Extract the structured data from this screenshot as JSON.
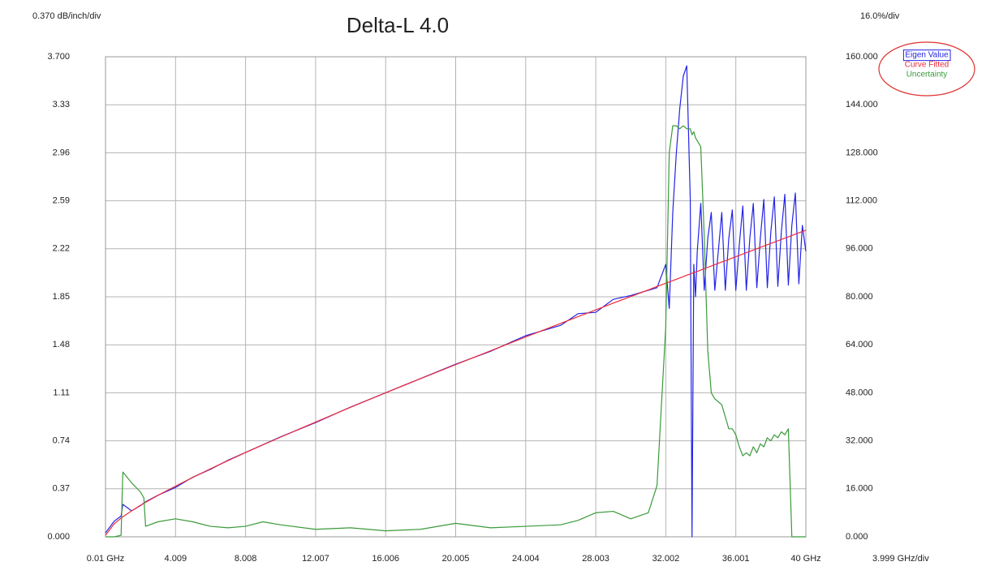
{
  "chart_data": {
    "type": "line",
    "title": "Delta-L 4.0",
    "y_axis_label": "0.370 dB/inch/div",
    "y2_axis_label": "16.0%/div",
    "x_axis_label": "3.999 GHz/div",
    "x": [
      0.01,
      0.5,
      0.9,
      1,
      1.5,
      2,
      2.2,
      2.3,
      3,
      4,
      5,
      6,
      7,
      8,
      9,
      10,
      12,
      14,
      16,
      18,
      20,
      22,
      24,
      26,
      27,
      28,
      29,
      30,
      31,
      31.5,
      32,
      32.2,
      32.4,
      32.6,
      32.8,
      33,
      33.2,
      33.4,
      33.5,
      33.6,
      33.7,
      33.8,
      34,
      34.2,
      34.4,
      34.6,
      34.8,
      35,
      35.2,
      35.4,
      35.6,
      35.8,
      36,
      36.2,
      36.4,
      36.6,
      36.8,
      37,
      37.2,
      37.4,
      37.6,
      37.8,
      38,
      38.2,
      38.4,
      38.6,
      38.8,
      39,
      39.2,
      39.4,
      39.6,
      39.8,
      40
    ],
    "series": [
      {
        "name": "Eigen Value",
        "color": "#2323e6",
        "values": [
          0.03,
          0.12,
          0.16,
          0.25,
          0.2,
          0.24,
          0.26,
          0.27,
          0.32,
          0.38,
          0.46,
          0.52,
          0.59,
          0.65,
          0.71,
          0.77,
          0.88,
          1.0,
          1.11,
          1.22,
          1.33,
          1.43,
          1.55,
          1.63,
          1.72,
          1.73,
          1.83,
          1.86,
          1.9,
          1.92,
          2.1,
          1.76,
          2.5,
          2.95,
          3.3,
          3.55,
          3.63,
          2.6,
          0.0,
          2.1,
          1.85,
          2.2,
          2.57,
          1.9,
          2.3,
          2.5,
          1.9,
          2.2,
          2.5,
          1.9,
          2.3,
          2.52,
          1.9,
          2.25,
          2.55,
          1.9,
          2.3,
          2.57,
          1.92,
          2.3,
          2.6,
          1.92,
          2.35,
          2.62,
          1.93,
          2.35,
          2.64,
          1.94,
          2.4,
          2.65,
          1.95,
          2.4,
          2.2
        ]
      },
      {
        "name": "Curve Fitted",
        "color": "#ee2b3b",
        "values": [
          0.012,
          0.1,
          0.144,
          0.154,
          0.2,
          0.242,
          0.258,
          0.266,
          0.319,
          0.39,
          0.458,
          0.524,
          0.587,
          0.649,
          0.709,
          0.768,
          0.884,
          0.998,
          1.11,
          1.219,
          1.327,
          1.434,
          1.54,
          1.645,
          1.697,
          1.749,
          1.801,
          1.852,
          1.903,
          1.929,
          1.954,
          1.964,
          1.975,
          1.985,
          1.995,
          2.005,
          2.016,
          2.026,
          2.031,
          2.036,
          2.041,
          2.046,
          2.056,
          2.066,
          2.077,
          2.087,
          2.097,
          2.108,
          2.118,
          2.128,
          2.138,
          2.149,
          2.159,
          2.169,
          2.179,
          2.19,
          2.2,
          2.21,
          2.22,
          2.231,
          2.241,
          2.251,
          2.261,
          2.271,
          2.282,
          2.292,
          2.302,
          2.312,
          2.322,
          2.333,
          2.343,
          2.353,
          2.363
        ]
      },
      {
        "name": "Uncertainty",
        "color": "#3a9a3a",
        "axis": "y2",
        "values": [
          0,
          0,
          0.5,
          21.6,
          18,
          15,
          13,
          3.5,
          5,
          6,
          5,
          3.5,
          3,
          3.5,
          5,
          4,
          2.5,
          3,
          2,
          2.5,
          4.5,
          3,
          3.5,
          4,
          5.5,
          8,
          8.5,
          6,
          8,
          17,
          70,
          128,
          137,
          137,
          136,
          137,
          136,
          136,
          134,
          135,
          133,
          132,
          130,
          100,
          62,
          48,
          46,
          45,
          44,
          40,
          36,
          36,
          34,
          30,
          27,
          28,
          27,
          30,
          28,
          31,
          30,
          33,
          32,
          34,
          33,
          35,
          34,
          36,
          0,
          0,
          0,
          0,
          0
        ]
      }
    ],
    "xlim": [
      0.01,
      40
    ],
    "xticks": [
      {
        "value": 0.01,
        "label": "0.01 GHz"
      },
      4.009,
      8.008,
      12.007,
      16.006,
      20.005,
      24.004,
      28.003,
      32.002,
      36.001,
      {
        "value": 40,
        "label": "40 GHz"
      }
    ],
    "ylim": [
      0,
      3.7
    ],
    "yticks": [
      {
        "value": 0,
        "label": "0.000"
      },
      0.37,
      0.74,
      1.11,
      1.48,
      1.85,
      2.22,
      2.59,
      2.96,
      3.33,
      {
        "value": 3.7,
        "label": "3.700"
      }
    ],
    "y2lim": [
      0,
      160
    ],
    "y2ticks": [
      {
        "value": 0,
        "label": "0.000"
      },
      {
        "value": 16,
        "label": "16.000"
      },
      {
        "value": 32,
        "label": "32.000"
      },
      {
        "value": 48,
        "label": "48.000"
      },
      {
        "value": 64,
        "label": "64.000"
      },
      {
        "value": 80,
        "label": "80.000"
      },
      {
        "value": 96,
        "label": "96.000"
      },
      {
        "value": 112,
        "label": "112.000"
      },
      {
        "value": 128,
        "label": "128.000"
      },
      {
        "value": 144,
        "label": "144.000"
      },
      {
        "value": 160,
        "label": "160.000"
      }
    ],
    "grid": true,
    "legend": "upper right"
  }
}
